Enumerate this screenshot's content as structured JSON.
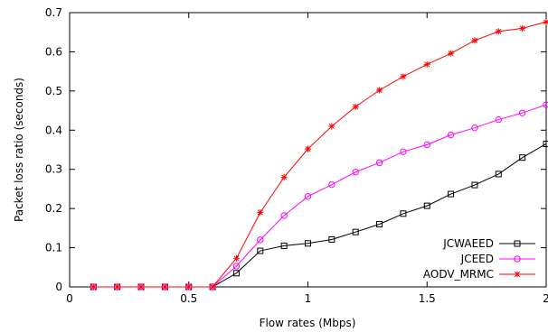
{
  "chart_data": {
    "type": "line",
    "title": "",
    "xlabel": "Flow rates (Mbps)",
    "ylabel": "Packet loss ratio (seconds)",
    "xlim": [
      0,
      2
    ],
    "ylim": [
      0,
      0.7
    ],
    "xticks": [
      0,
      0.5,
      1,
      1.5,
      2
    ],
    "xtick_labels": [
      "0",
      "0.5",
      "1",
      "1.5",
      "2"
    ],
    "yticks": [
      0,
      0.1,
      0.2,
      0.3,
      0.4,
      0.5,
      0.6,
      0.7
    ],
    "ytick_labels": [
      "0",
      "0.1",
      "0.2",
      "0.3",
      "0.4",
      "0.5",
      "0.6",
      "0.7"
    ],
    "grid": false,
    "legend_position": "bottom-right",
    "x": [
      0.1,
      0.2,
      0.3,
      0.4,
      0.5,
      0.6,
      0.7,
      0.8,
      0.9,
      1.0,
      1.1,
      1.2,
      1.3,
      1.4,
      1.5,
      1.6,
      1.7,
      1.8,
      1.9,
      2.0
    ],
    "series": [
      {
        "name": "JCWAEED",
        "color": "#000000",
        "marker": "square",
        "values": [
          0,
          0,
          0,
          0,
          0,
          0,
          0.035,
          0.092,
          0.105,
          0.111,
          0.121,
          0.14,
          0.16,
          0.187,
          0.207,
          0.237,
          0.26,
          0.288,
          0.33,
          0.365
        ]
      },
      {
        "name": "JCEED",
        "color": "#ff00ff",
        "marker": "circle",
        "values": [
          0,
          0,
          0,
          0,
          0,
          0,
          0.053,
          0.12,
          0.182,
          0.231,
          0.261,
          0.293,
          0.317,
          0.345,
          0.363,
          0.388,
          0.406,
          0.427,
          0.444,
          0.465
        ]
      },
      {
        "name": "AODV_MRMC",
        "color": "#ff0000",
        "marker": "star",
        "values": [
          0,
          0,
          0,
          0,
          0,
          0,
          0.073,
          0.19,
          0.28,
          0.352,
          0.41,
          0.46,
          0.502,
          0.537,
          0.568,
          0.596,
          0.629,
          0.652,
          0.66,
          0.676
        ]
      }
    ]
  }
}
